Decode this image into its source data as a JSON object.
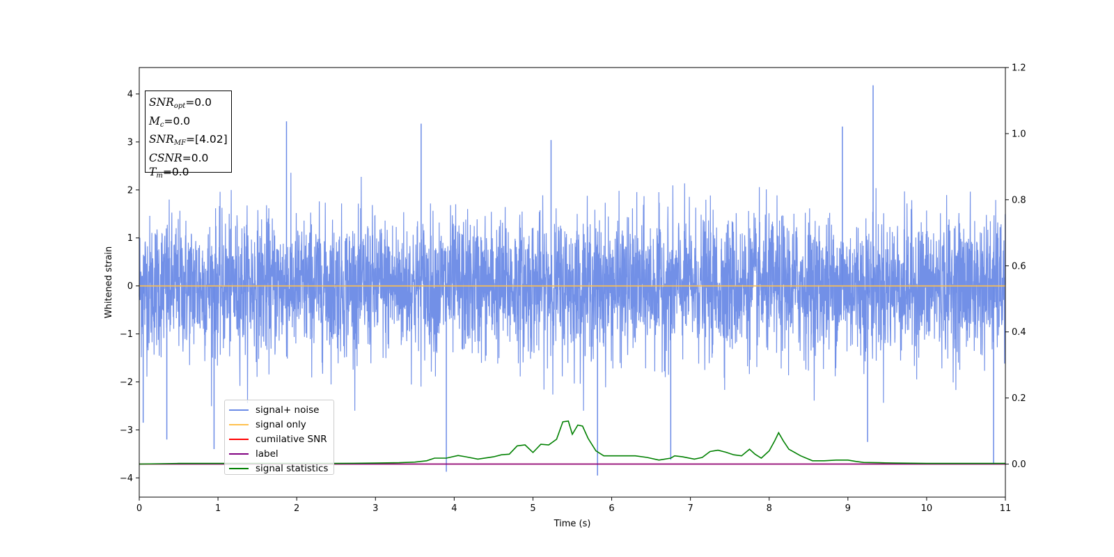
{
  "chart_data": {
    "type": "line",
    "xlabel": "Time (s)",
    "ylabel": "Whitened strain",
    "xlim": [
      0,
      11
    ],
    "ylim": [
      -4.4,
      4.55
    ],
    "y2lim": [
      -0.1,
      1.2
    ],
    "x_ticks": [
      "0",
      "1",
      "2",
      "3",
      "4",
      "5",
      "6",
      "7",
      "8",
      "9",
      "10",
      "11"
    ],
    "y_ticks": [
      "−4",
      "−3",
      "−2",
      "−1",
      "0",
      "1",
      "2",
      "3",
      "4"
    ],
    "y2_ticks": [
      "0.0",
      "0.2",
      "0.4",
      "0.6",
      "0.8",
      "1.0",
      "1.2"
    ],
    "grid": false,
    "legend_position": "lower-left",
    "series": [
      {
        "name": "signal+ noise",
        "axis": "left",
        "color": "#6a8ae6",
        "description_values": "dense whitened noise, approximately -2 to 2 with spikes",
        "spikes": [
          [
            0.05,
            -2.85
          ],
          [
            0.35,
            -3.2
          ],
          [
            0.95,
            -3.4
          ],
          [
            1.87,
            3.43
          ],
          [
            3.58,
            3.38
          ],
          [
            3.9,
            -3.87
          ],
          [
            5.23,
            3.04
          ],
          [
            5.82,
            -3.95
          ],
          [
            6.75,
            -3.62
          ],
          [
            8.93,
            3.32
          ],
          [
            9.32,
            4.18
          ],
          [
            9.25,
            -3.25
          ],
          [
            10.85,
            -3.72
          ]
        ]
      },
      {
        "name": "signal only",
        "axis": "left",
        "color": "#ffc04d",
        "x": [
          0,
          11
        ],
        "values": [
          0,
          0
        ]
      },
      {
        "name": "cumilative SNR",
        "axis": "right",
        "color": "#ff0000",
        "x": [
          0,
          11
        ],
        "values": [
          0,
          0
        ]
      },
      {
        "name": "label",
        "axis": "right",
        "color": "#800080",
        "x": [
          0,
          11
        ],
        "values": [
          0,
          0
        ]
      },
      {
        "name": "signal statistics",
        "axis": "right",
        "color": "#008000",
        "x": [
          0,
          0.5,
          1.0,
          1.5,
          2.0,
          2.5,
          3.0,
          3.3,
          3.5,
          3.65,
          3.75,
          3.9,
          4.05,
          4.15,
          4.3,
          4.5,
          4.6,
          4.7,
          4.8,
          4.9,
          5.0,
          5.1,
          5.2,
          5.3,
          5.38,
          5.45,
          5.5,
          5.57,
          5.63,
          5.7,
          5.8,
          5.9,
          6.0,
          6.1,
          6.2,
          6.3,
          6.45,
          6.6,
          6.75,
          6.8,
          6.9,
          7.05,
          7.15,
          7.25,
          7.35,
          7.45,
          7.55,
          7.65,
          7.75,
          7.82,
          7.9,
          8.0,
          8.07,
          8.12,
          8.18,
          8.25,
          8.4,
          8.55,
          8.7,
          8.85,
          9.0,
          9.1,
          9.2,
          9.4,
          9.6,
          10.0,
          10.5,
          11.0
        ],
        "values": [
          0.0,
          0.002,
          0.002,
          0.002,
          0.002,
          0.002,
          0.003,
          0.004,
          0.006,
          0.01,
          0.018,
          0.018,
          0.026,
          0.022,
          0.015,
          0.022,
          0.028,
          0.03,
          0.055,
          0.058,
          0.035,
          0.06,
          0.058,
          0.075,
          0.128,
          0.13,
          0.09,
          0.118,
          0.115,
          0.078,
          0.04,
          0.025,
          0.025,
          0.025,
          0.025,
          0.025,
          0.02,
          0.012,
          0.018,
          0.025,
          0.022,
          0.015,
          0.02,
          0.038,
          0.042,
          0.036,
          0.028,
          0.025,
          0.045,
          0.03,
          0.018,
          0.04,
          0.07,
          0.095,
          0.07,
          0.045,
          0.025,
          0.01,
          0.01,
          0.012,
          0.012,
          0.008,
          0.005,
          0.004,
          0.003,
          0.002,
          0.002,
          0.002
        ]
      }
    ]
  },
  "info_box": {
    "snr_opt": "=0.0",
    "mc": "=0.0",
    "snr_mf": "=[4.02]",
    "csnr": "=0.0",
    "tm": "=0.0"
  }
}
